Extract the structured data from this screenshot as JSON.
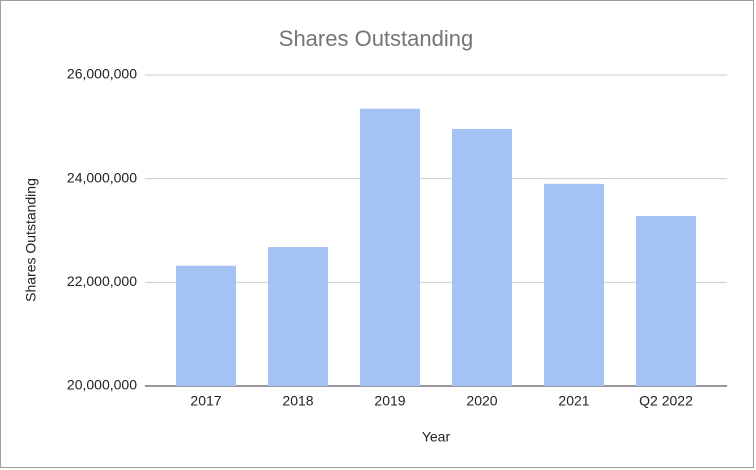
{
  "chart_data": {
    "type": "bar",
    "title": "Shares Outstanding",
    "x_label": "Year",
    "y_label": "Shares Outstanding",
    "categories": [
      "2017",
      "2018",
      "2019",
      "2020",
      "2021",
      "Q2 2022"
    ],
    "values": [
      22320000,
      22680000,
      25350000,
      24960000,
      23900000,
      23280000
    ],
    "color": "#a4c2f4",
    "ylim": [
      20000000,
      26000000
    ],
    "yticks": [
      {
        "value": 20000000,
        "label": "20,000,000"
      },
      {
        "value": 22000000,
        "label": "22,000,000"
      },
      {
        "value": 24000000,
        "label": "24,000,000"
      },
      {
        "value": 26000000,
        "label": "26,000,000"
      }
    ],
    "grid": true
  }
}
